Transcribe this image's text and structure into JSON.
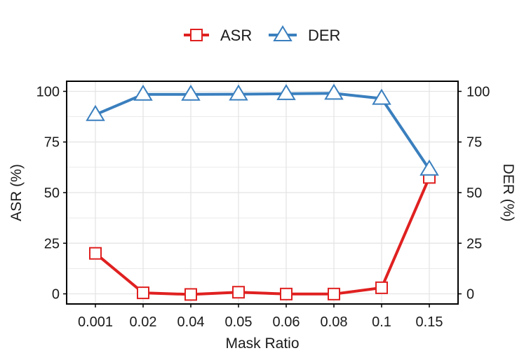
{
  "colors": {
    "asr": "#e02020",
    "der": "#3a7fbe",
    "grid": "#e3e3e3",
    "axis": "#000000"
  },
  "chart_data": {
    "type": "line",
    "categories": [
      "0.001",
      "0.02",
      "0.04",
      "0.05",
      "0.06",
      "0.08",
      "0.1",
      "0.15"
    ],
    "xlabel": "Mask Ratio",
    "ylabel": "ASR (%)",
    "ylabel_right": "DER (%)",
    "ylim": [
      -5,
      105
    ],
    "yticks": [
      "0",
      "25",
      "50",
      "75",
      "100"
    ],
    "grid": true,
    "legend_position": "top-center",
    "series": [
      {
        "name": "ASR",
        "axis": "left",
        "marker": "square",
        "color": "#e02020",
        "values": [
          20,
          0.5,
          -0.3,
          0.8,
          -0.1,
          -0.1,
          3,
          57.5
        ]
      },
      {
        "name": "DER",
        "axis": "right",
        "marker": "triangle",
        "color": "#3a7fbe",
        "values": [
          88.5,
          98.5,
          98.5,
          98.6,
          98.8,
          99,
          96.5,
          61.5
        ]
      }
    ]
  }
}
